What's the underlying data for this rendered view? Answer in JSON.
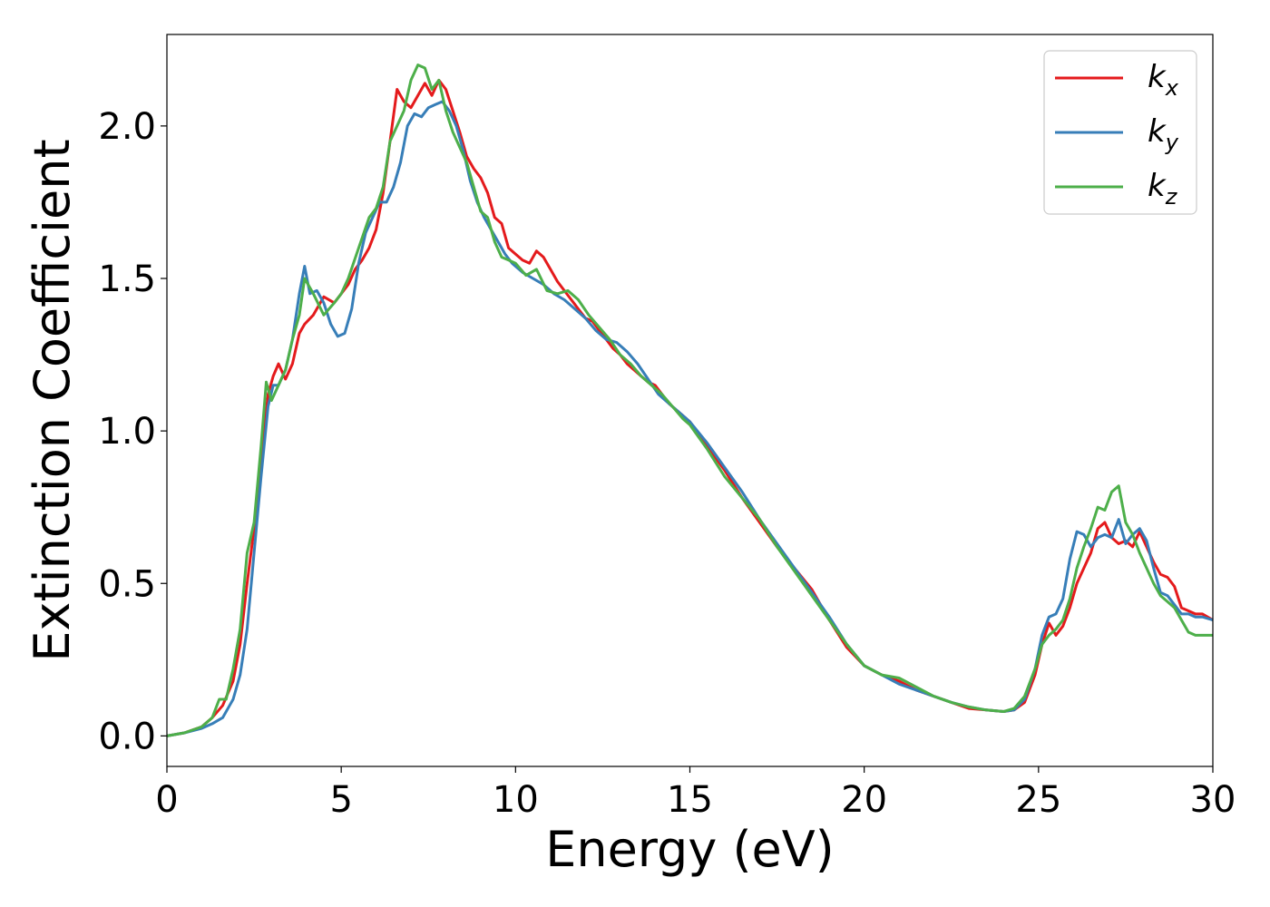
{
  "chart_data": {
    "type": "line",
    "xlabel": "Energy (eV)",
    "ylabel": "Extinction Coefficient",
    "xlim": [
      0,
      30
    ],
    "ylim": [
      -0.1,
      2.3
    ],
    "xticks": [
      0,
      5,
      10,
      15,
      20,
      25,
      30
    ],
    "xtick_labels": [
      "0",
      "5",
      "10",
      "15",
      "20",
      "25",
      "30"
    ],
    "yticks": [
      0.0,
      0.5,
      1.0,
      1.5,
      2.0
    ],
    "ytick_labels": [
      "0.0",
      "0.5",
      "1.0",
      "1.5",
      "2.0"
    ],
    "grid": false,
    "legend_position": "top-right",
    "series": [
      {
        "name": "k_x",
        "label_base": "k",
        "label_sub": "x",
        "color": "#e41a1c",
        "x": [
          0,
          0.5,
          1,
          1.3,
          1.6,
          1.9,
          2.1,
          2.3,
          2.5,
          2.7,
          2.9,
          3.05,
          3.2,
          3.4,
          3.6,
          3.8,
          3.95,
          4.2,
          4.5,
          4.8,
          5,
          5.2,
          5.4,
          5.6,
          5.8,
          6,
          6.2,
          6.4,
          6.6,
          6.8,
          7,
          7.2,
          7.4,
          7.6,
          7.8,
          8,
          8.2,
          8.4,
          8.6,
          8.8,
          9,
          9.2,
          9.4,
          9.6,
          9.8,
          10,
          10.2,
          10.4,
          10.6,
          10.8,
          11,
          11.2,
          11.4,
          11.6,
          11.8,
          12,
          12.2,
          12.4,
          12.6,
          12.8,
          13,
          13.2,
          13.4,
          13.6,
          13.8,
          14,
          14.2,
          14.4,
          14.6,
          14.8,
          15,
          15.5,
          16,
          16.5,
          17,
          17.5,
          18,
          18.5,
          19,
          19.5,
          20,
          20.5,
          21,
          21.5,
          22,
          22.5,
          23,
          23.5,
          24,
          24.3,
          24.6,
          24.9,
          25.1,
          25.3,
          25.5,
          25.7,
          25.9,
          26.1,
          26.3,
          26.5,
          26.7,
          26.9,
          27.1,
          27.3,
          27.5,
          27.7,
          27.9,
          28.1,
          28.3,
          28.5,
          28.7,
          28.9,
          29.1,
          29.3,
          29.5,
          29.7,
          30
        ],
        "y": [
          0,
          0.01,
          0.03,
          0.06,
          0.1,
          0.18,
          0.3,
          0.5,
          0.68,
          0.9,
          1.12,
          1.18,
          1.22,
          1.17,
          1.22,
          1.32,
          1.35,
          1.38,
          1.44,
          1.42,
          1.45,
          1.48,
          1.53,
          1.56,
          1.6,
          1.66,
          1.78,
          1.95,
          2.12,
          2.08,
          2.06,
          2.1,
          2.14,
          2.1,
          2.15,
          2.12,
          2.05,
          1.98,
          1.9,
          1.86,
          1.83,
          1.78,
          1.7,
          1.68,
          1.6,
          1.58,
          1.56,
          1.55,
          1.59,
          1.57,
          1.53,
          1.49,
          1.46,
          1.43,
          1.4,
          1.37,
          1.36,
          1.33,
          1.3,
          1.27,
          1.25,
          1.22,
          1.2,
          1.18,
          1.16,
          1.15,
          1.12,
          1.09,
          1.07,
          1.05,
          1.03,
          0.95,
          0.87,
          0.78,
          0.7,
          0.62,
          0.55,
          0.48,
          0.38,
          0.29,
          0.23,
          0.2,
          0.18,
          0.15,
          0.13,
          0.11,
          0.09,
          0.085,
          0.08,
          0.085,
          0.11,
          0.2,
          0.3,
          0.37,
          0.33,
          0.36,
          0.42,
          0.5,
          0.55,
          0.6,
          0.68,
          0.7,
          0.65,
          0.63,
          0.64,
          0.62,
          0.67,
          0.62,
          0.57,
          0.53,
          0.52,
          0.49,
          0.42,
          0.41,
          0.4,
          0.4,
          0.38
        ]
      },
      {
        "name": "k_y",
        "label_base": "k",
        "label_sub": "y",
        "color": "#377eb8",
        "x": [
          0,
          0.5,
          1,
          1.3,
          1.6,
          1.9,
          2.1,
          2.3,
          2.5,
          2.7,
          2.9,
          3.05,
          3.2,
          3.4,
          3.6,
          3.8,
          3.95,
          4.1,
          4.3,
          4.5,
          4.7,
          4.9,
          5.1,
          5.3,
          5.5,
          5.7,
          5.9,
          6.1,
          6.3,
          6.5,
          6.7,
          6.9,
          7.1,
          7.3,
          7.5,
          7.7,
          7.9,
          8.1,
          8.3,
          8.5,
          8.7,
          8.9,
          9.1,
          9.3,
          9.5,
          9.7,
          9.9,
          10.2,
          10.5,
          10.8,
          11.1,
          11.4,
          11.7,
          12,
          12.3,
          12.6,
          12.9,
          13.2,
          13.5,
          13.8,
          14.1,
          14.4,
          14.7,
          15,
          15.5,
          16,
          16.5,
          17,
          17.5,
          18,
          18.5,
          19,
          19.5,
          20,
          20.5,
          21,
          21.5,
          22,
          22.5,
          23,
          23.5,
          24,
          24.3,
          24.6,
          24.9,
          25.1,
          25.3,
          25.5,
          25.7,
          25.9,
          26.1,
          26.3,
          26.5,
          26.7,
          26.9,
          27.1,
          27.3,
          27.5,
          27.7,
          27.9,
          28.1,
          28.3,
          28.5,
          28.7,
          28.9,
          29.1,
          29.3,
          29.5,
          29.7,
          30
        ],
        "y": [
          0,
          0.01,
          0.025,
          0.04,
          0.06,
          0.12,
          0.2,
          0.35,
          0.6,
          0.85,
          1.08,
          1.15,
          1.15,
          1.2,
          1.3,
          1.45,
          1.54,
          1.45,
          1.46,
          1.42,
          1.35,
          1.31,
          1.32,
          1.4,
          1.55,
          1.65,
          1.7,
          1.75,
          1.75,
          1.8,
          1.88,
          2.0,
          2.04,
          2.03,
          2.06,
          2.07,
          2.08,
          2.05,
          2.0,
          1.92,
          1.82,
          1.75,
          1.7,
          1.66,
          1.62,
          1.58,
          1.55,
          1.52,
          1.5,
          1.48,
          1.45,
          1.43,
          1.4,
          1.37,
          1.33,
          1.3,
          1.29,
          1.26,
          1.22,
          1.17,
          1.12,
          1.09,
          1.06,
          1.03,
          0.96,
          0.88,
          0.8,
          0.71,
          0.63,
          0.55,
          0.47,
          0.39,
          0.3,
          0.23,
          0.2,
          0.17,
          0.15,
          0.13,
          0.11,
          0.095,
          0.085,
          0.08,
          0.085,
          0.12,
          0.22,
          0.33,
          0.39,
          0.4,
          0.45,
          0.58,
          0.67,
          0.66,
          0.62,
          0.65,
          0.66,
          0.65,
          0.71,
          0.63,
          0.66,
          0.68,
          0.64,
          0.55,
          0.47,
          0.46,
          0.43,
          0.4,
          0.4,
          0.39,
          0.39,
          0.38
        ]
      },
      {
        "name": "k_z",
        "label_base": "k",
        "label_sub": "z",
        "color": "#4daf4a",
        "x": [
          0,
          0.5,
          1,
          1.3,
          1.5,
          1.7,
          1.9,
          2.1,
          2.3,
          2.5,
          2.7,
          2.85,
          3.0,
          3.2,
          3.4,
          3.6,
          3.8,
          3.95,
          4.2,
          4.5,
          4.8,
          5.0,
          5.2,
          5.5,
          5.8,
          6.0,
          6.2,
          6.4,
          6.6,
          6.8,
          7.0,
          7.2,
          7.4,
          7.6,
          7.8,
          8.0,
          8.2,
          8.4,
          8.6,
          8.8,
          9.0,
          9.2,
          9.4,
          9.6,
          9.8,
          10,
          10.3,
          10.6,
          10.9,
          11.2,
          11.5,
          11.8,
          12.1,
          12.4,
          12.7,
          13.0,
          13.3,
          13.6,
          13.9,
          14.2,
          14.5,
          14.8,
          15,
          15.5,
          16,
          16.5,
          17,
          17.5,
          18,
          18.5,
          19,
          19.5,
          20,
          20.5,
          21,
          21.5,
          22,
          22.5,
          23,
          23.5,
          24,
          24.3,
          24.6,
          24.9,
          25.1,
          25.3,
          25.5,
          25.7,
          25.9,
          26.1,
          26.3,
          26.5,
          26.7,
          26.9,
          27.1,
          27.3,
          27.5,
          27.7,
          27.9,
          28.1,
          28.3,
          28.5,
          28.7,
          28.9,
          29.1,
          29.3,
          29.5,
          29.7,
          30
        ],
        "y": [
          0,
          0.01,
          0.03,
          0.06,
          0.12,
          0.12,
          0.22,
          0.35,
          0.6,
          0.7,
          0.95,
          1.16,
          1.1,
          1.15,
          1.2,
          1.3,
          1.38,
          1.5,
          1.45,
          1.38,
          1.42,
          1.45,
          1.5,
          1.6,
          1.7,
          1.73,
          1.8,
          1.95,
          2.0,
          2.05,
          2.15,
          2.2,
          2.19,
          2.12,
          2.15,
          2.05,
          1.98,
          1.93,
          1.88,
          1.8,
          1.72,
          1.7,
          1.62,
          1.57,
          1.56,
          1.55,
          1.51,
          1.53,
          1.46,
          1.45,
          1.46,
          1.43,
          1.38,
          1.34,
          1.3,
          1.25,
          1.22,
          1.18,
          1.15,
          1.12,
          1.08,
          1.04,
          1.02,
          0.94,
          0.85,
          0.78,
          0.71,
          0.62,
          0.54,
          0.46,
          0.38,
          0.3,
          0.23,
          0.2,
          0.19,
          0.16,
          0.13,
          0.11,
          0.095,
          0.085,
          0.08,
          0.09,
          0.13,
          0.22,
          0.3,
          0.33,
          0.35,
          0.38,
          0.45,
          0.55,
          0.62,
          0.68,
          0.75,
          0.74,
          0.8,
          0.82,
          0.7,
          0.66,
          0.6,
          0.55,
          0.5,
          0.46,
          0.44,
          0.42,
          0.38,
          0.34,
          0.33,
          0.33,
          0.33
        ]
      }
    ]
  }
}
